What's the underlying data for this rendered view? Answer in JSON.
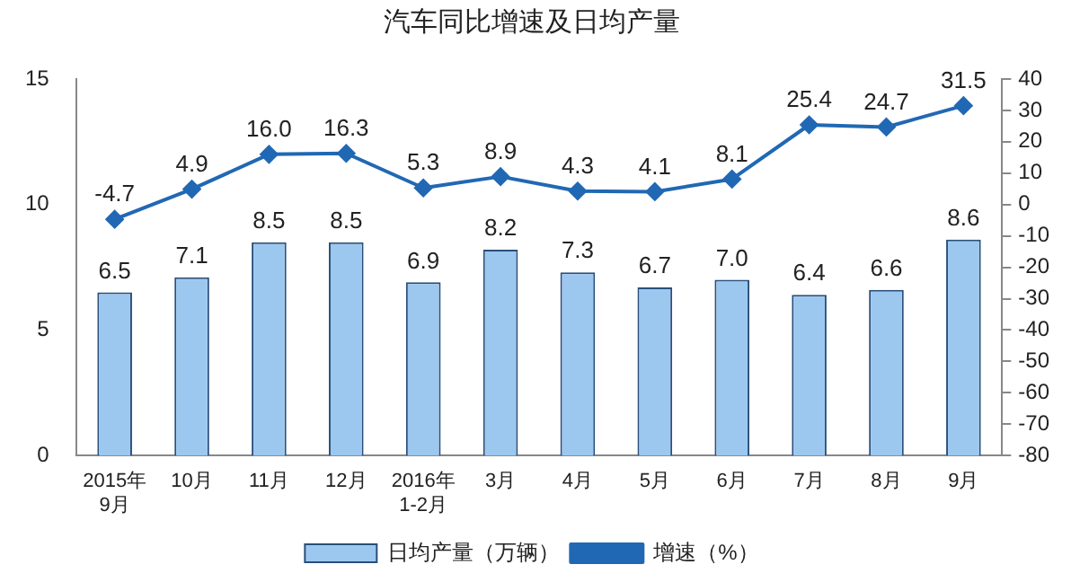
{
  "chart_data": {
    "type": "bar",
    "title": "汽车同比增速及日均产量",
    "categories": [
      "2015年\n9月",
      "10月",
      "11月",
      "12月",
      "2016年\n1-2月",
      "3月",
      "4月",
      "5月",
      "6月",
      "7月",
      "8月",
      "9月"
    ],
    "series": [
      {
        "name": "日均产量（万辆）",
        "color": "#9cc8f0",
        "values": [
          6.5,
          7.1,
          8.5,
          8.5,
          6.9,
          8.2,
          7.3,
          6.7,
          7.0,
          6.4,
          6.6,
          8.6
        ],
        "value_labels": [
          "6.5",
          "7.1",
          "8.5",
          "8.5",
          "6.9",
          "8.2",
          "7.3",
          "6.7",
          "7.0",
          "6.4",
          "6.6",
          "8.6"
        ]
      },
      {
        "name": "增速（%）",
        "type": "line",
        "axis": "y2",
        "color": "#2168b4",
        "values": [
          -4.7,
          4.9,
          16.0,
          16.3,
          5.3,
          8.9,
          4.3,
          4.1,
          8.1,
          25.4,
          24.7,
          31.5
        ],
        "value_labels": [
          "-4.7",
          "4.9",
          "16.0",
          "16.3",
          "5.3",
          "8.9",
          "4.3",
          "4.1",
          "8.1",
          "25.4",
          "24.7",
          "31.5"
        ]
      }
    ],
    "ylim": [
      0,
      15
    ],
    "yticks": [
      0,
      5,
      10,
      15
    ],
    "y2lim": [
      -80,
      40
    ],
    "y2ticks": [
      -80,
      -70,
      -60,
      -50,
      -40,
      -30,
      -20,
      -10,
      0,
      10,
      20,
      30,
      40
    ],
    "data_labels": true,
    "grid": false,
    "legend": "bottom",
    "marker": "diamond"
  }
}
